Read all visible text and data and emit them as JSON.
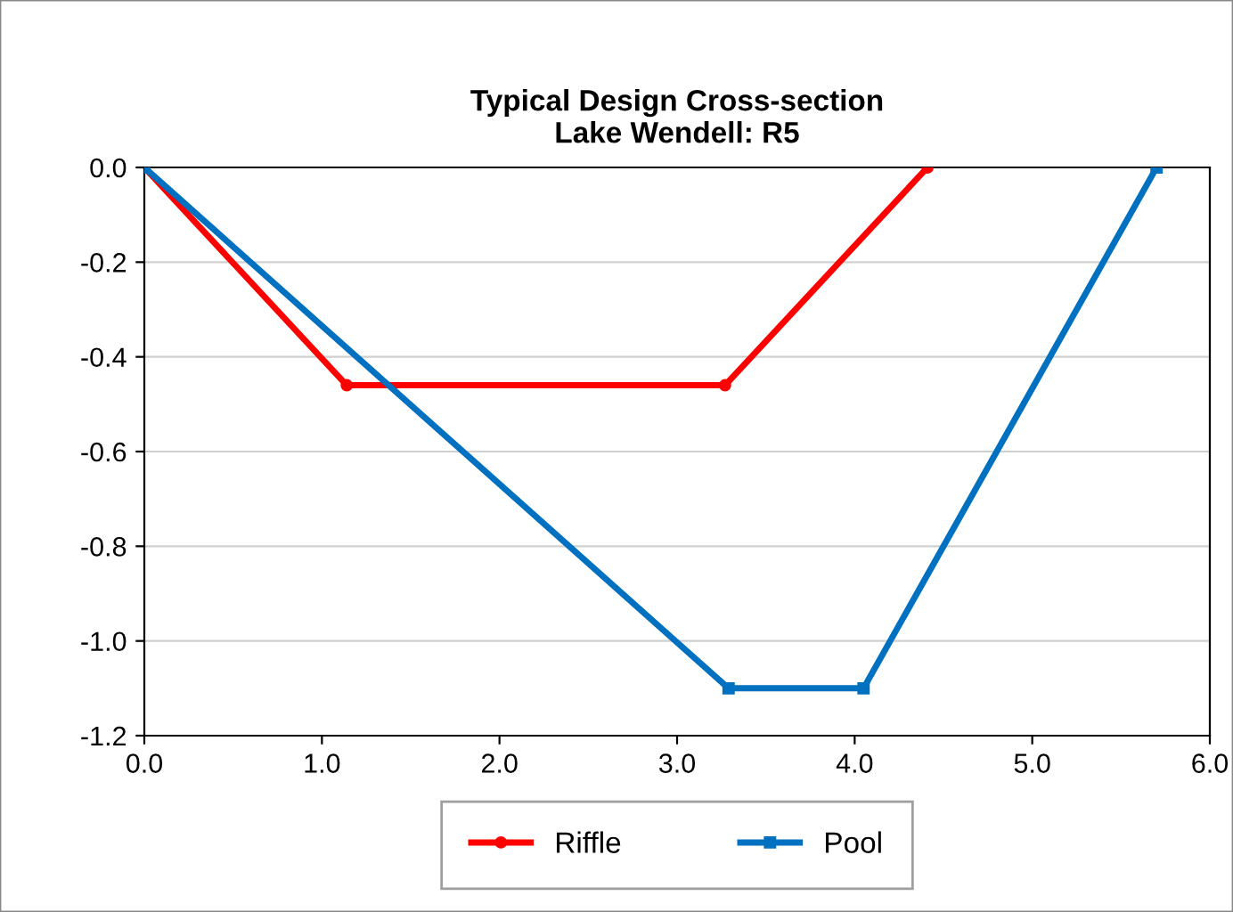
{
  "chart_data": {
    "type": "line",
    "title": "Typical Design Cross-section\nLake Wendell: R5",
    "series": [
      {
        "name": "Riffle",
        "color": "#ff0000",
        "marker": "circle",
        "x": [
          0,
          1.14,
          3.27,
          4.41
        ],
        "values": [
          0,
          -0.46,
          -0.46,
          0
        ]
      },
      {
        "name": "Pool",
        "color": "#0070c0",
        "marker": "square",
        "x": [
          0,
          3.29,
          4.05,
          5.7
        ],
        "values": [
          0,
          -1.1,
          -1.1,
          0
        ]
      }
    ],
    "xlim": [
      0,
      6
    ],
    "xticks": [
      {
        "value": 0,
        "label": "0.0"
      },
      {
        "value": 1,
        "label": "1.0"
      },
      {
        "value": 2,
        "label": "2.0"
      },
      {
        "value": 3,
        "label": "3.0"
      },
      {
        "value": 4,
        "label": "4.0"
      },
      {
        "value": 5,
        "label": "5.0"
      },
      {
        "value": 6,
        "label": "6.0"
      }
    ],
    "ylim": [
      -1.2,
      0
    ],
    "yticks": [
      {
        "value": 0,
        "label": "0.0"
      },
      {
        "value": -0.2,
        "label": "-0.2"
      },
      {
        "value": -0.4,
        "label": "-0.4"
      },
      {
        "value": -0.6,
        "label": "-0.6"
      },
      {
        "value": -0.8,
        "label": "-0.8"
      },
      {
        "value": -1.0,
        "label": "-1.0"
      },
      {
        "value": -1.2,
        "label": "-1.2"
      }
    ],
    "grid": "y",
    "legend": "bottom",
    "line_style": "solid"
  }
}
